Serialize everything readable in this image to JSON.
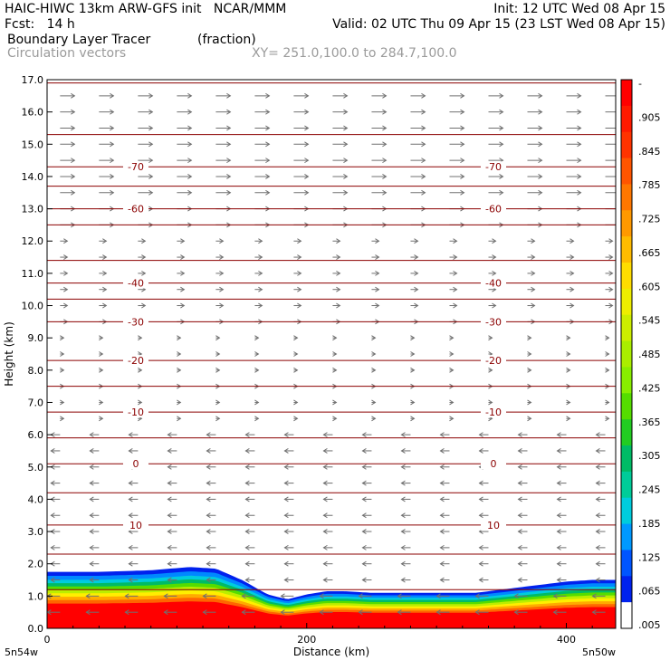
{
  "header": {
    "line1_left": "HAIC-HIWC 13km ARW-GFS init   NCAR/MMM",
    "line1_right": "Init: 12 UTC Wed 08 Apr 15",
    "line2_left": "Fcst:   14 h",
    "line2_right": "Valid: 02 UTC Thu 09 Apr 15 (23 LST Wed 08 Apr 15)",
    "field_name": "Boundary Layer Tracer",
    "field_units": "(fraction)",
    "vector_name": "Circulation vectors",
    "xy_range": "XY= 251.0,100.0 to 284.7,100.0"
  },
  "chart_data": {
    "type": "area",
    "xlabel": "Distance (km)",
    "ylabel": "Height (km)",
    "xlim": [
      0,
      438
    ],
    "ylim": [
      0,
      17
    ],
    "x_ticks": [
      0,
      200,
      400
    ],
    "y_ticks": [
      "0.0",
      "1.0",
      "2.0",
      "3.0",
      "4.0",
      "5.0",
      "6.0",
      "7.0",
      "8.0",
      "9.0",
      "10.0",
      "11.0",
      "12.0",
      "13.0",
      "14.0",
      "15.0",
      "16.0",
      "17.0"
    ],
    "x_end_labels": {
      "left": "5n54w",
      "right": "5n50w"
    },
    "colorbar_labels": [
      "-",
      ".905",
      ".845",
      ".785",
      ".725",
      ".665",
      ".605",
      ".545",
      ".485",
      ".425",
      ".365",
      ".305",
      ".245",
      ".185",
      ".125",
      ".065",
      ".005"
    ],
    "colorbar_colors": [
      "#ff0000",
      "#ff1a00",
      "#ff3300",
      "#ff5500",
      "#ff7700",
      "#ff9900",
      "#ffbb00",
      "#ffdd00",
      "#eeee00",
      "#ccee00",
      "#aaee00",
      "#88ee00",
      "#55dd00",
      "#22cc22",
      "#00bb66",
      "#00cc99",
      "#00ccdd",
      "#0099ff",
      "#0055ff",
      "#0022ee",
      "#ffffff"
    ],
    "tracer_top_height_km": [
      [
        0,
        1.75
      ],
      [
        40,
        1.75
      ],
      [
        80,
        1.8
      ],
      [
        110,
        1.9
      ],
      [
        130,
        1.85
      ],
      [
        150,
        1.5
      ],
      [
        170,
        1.05
      ],
      [
        185,
        0.9
      ],
      [
        200,
        1.05
      ],
      [
        215,
        1.15
      ],
      [
        230,
        1.15
      ],
      [
        250,
        1.1
      ],
      [
        270,
        1.1
      ],
      [
        300,
        1.1
      ],
      [
        330,
        1.1
      ],
      [
        350,
        1.2
      ],
      [
        380,
        1.35
      ],
      [
        400,
        1.45
      ],
      [
        420,
        1.5
      ],
      [
        438,
        1.5
      ]
    ],
    "temperature_contours": [
      {
        "height_km": 3.2,
        "label": "10"
      },
      {
        "height_km": 5.1,
        "label": "0"
      },
      {
        "height_km": 6.7,
        "label": "-10"
      },
      {
        "height_km": 8.3,
        "label": "-20"
      },
      {
        "height_km": 9.5,
        "label": "-30"
      },
      {
        "height_km": 10.7,
        "label": "-40"
      },
      {
        "height_km": 13.0,
        "label": "-60"
      },
      {
        "height_km": 14.3,
        "label": "-70"
      }
    ]
  }
}
